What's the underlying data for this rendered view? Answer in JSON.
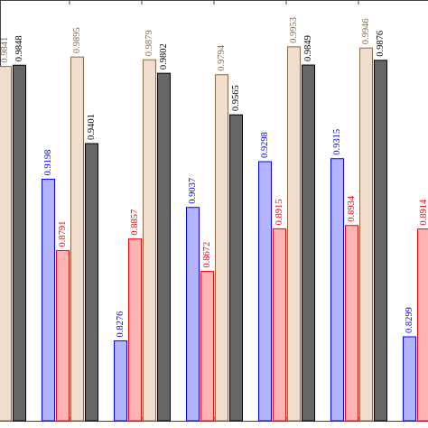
{
  "chart_data": {
    "type": "bar",
    "categories": [
      null,
      null,
      null,
      null,
      null,
      null,
      null
    ],
    "series": [
      {
        "color": "#0000ff",
        "fill": "#b3b3ff",
        "values": [
          null,
          0.9198,
          0.8276,
          0.9037,
          0.9298,
          0.9315,
          0.8299
        ]
      },
      {
        "color": "#ff0000",
        "fill": "#ffb3b3",
        "values": [
          null,
          0.8791,
          0.8857,
          0.8672,
          0.8915,
          0.8934,
          0.8914
        ]
      },
      {
        "color": "#8c6a46",
        "fill": "#f2dccb",
        "values": [
          0.9841,
          0.9895,
          0.9879,
          0.9794,
          0.9953,
          0.9946,
          null
        ]
      },
      {
        "color": "#000000",
        "fill": "#666666",
        "values": [
          0.9848,
          0.9401,
          0.9802,
          0.9565,
          0.9849,
          0.9876,
          null
        ]
      }
    ],
    "ylim": [
      0.782,
      1.022
    ]
  }
}
